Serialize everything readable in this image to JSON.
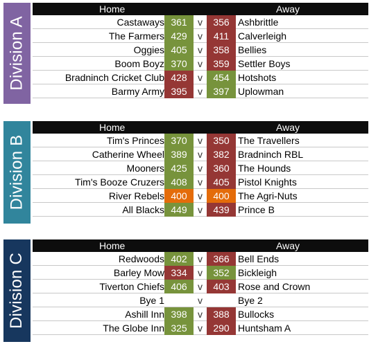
{
  "colors": {
    "win": "#77933c",
    "lose": "#953735",
    "draw": "#e46c0a"
  },
  "header": {
    "home": "Home",
    "away": "Away"
  },
  "versus": "v",
  "divisions": [
    {
      "name": "Division A",
      "color": "#8064a2",
      "matches": [
        {
          "home": "Castaways",
          "home_score": "361",
          "away_score": "356",
          "away": "Ashbrittle"
        },
        {
          "home": "The Farmers",
          "home_score": "429",
          "away_score": "411",
          "away": "Calverleigh"
        },
        {
          "home": "Oggies",
          "home_score": "405",
          "away_score": "358",
          "away": "Bellies"
        },
        {
          "home": "Boom Boyz",
          "home_score": "370",
          "away_score": "359",
          "away": "Settler Boys"
        },
        {
          "home": "Bradninch Cricket Club",
          "home_score": "428",
          "away_score": "454",
          "away": "Hotshots"
        },
        {
          "home": "Barmy Army",
          "home_score": "395",
          "away_score": "397",
          "away": "Uplowman"
        }
      ]
    },
    {
      "name": "Division B",
      "color": "#31859c",
      "matches": [
        {
          "home": "Tim's Princes",
          "home_score": "370",
          "away_score": "350",
          "away": "The Travellers"
        },
        {
          "home": "Catherine Wheel",
          "home_score": "389",
          "away_score": "382",
          "away": "Bradninch RBL"
        },
        {
          "home": "Mooners",
          "home_score": "425",
          "away_score": "360",
          "away": "The Hounds"
        },
        {
          "home": "Tim's Booze Cruzers",
          "home_score": "408",
          "away_score": "405",
          "away": "Pistol Knights"
        },
        {
          "home": "River Rebels",
          "home_score": "400",
          "away_score": "400",
          "away": "The Agri-Nuts"
        },
        {
          "home": "All Blacks",
          "home_score": "449",
          "away_score": "439",
          "away": "Prince B"
        }
      ]
    },
    {
      "name": "Division C",
      "color": "#17375e",
      "matches": [
        {
          "home": "Redwoods",
          "home_score": "402",
          "away_score": "366",
          "away": "Bell Ends"
        },
        {
          "home": "Barley Mow",
          "home_score": "334",
          "away_score": "352",
          "away": "Bickleigh"
        },
        {
          "home": "Tiverton Chiefs",
          "home_score": "406",
          "away_score": "403",
          "away": "Rose and Crown"
        },
        {
          "home": "Bye 1",
          "home_score": "",
          "away_score": "",
          "away": "Bye 2"
        },
        {
          "home": "Ashill Inn",
          "home_score": "398",
          "away_score": "388",
          "away": "Bullocks"
        },
        {
          "home": "The Globe Inn",
          "home_score": "325",
          "away_score": "290",
          "away": "Huntsham A"
        }
      ]
    }
  ]
}
